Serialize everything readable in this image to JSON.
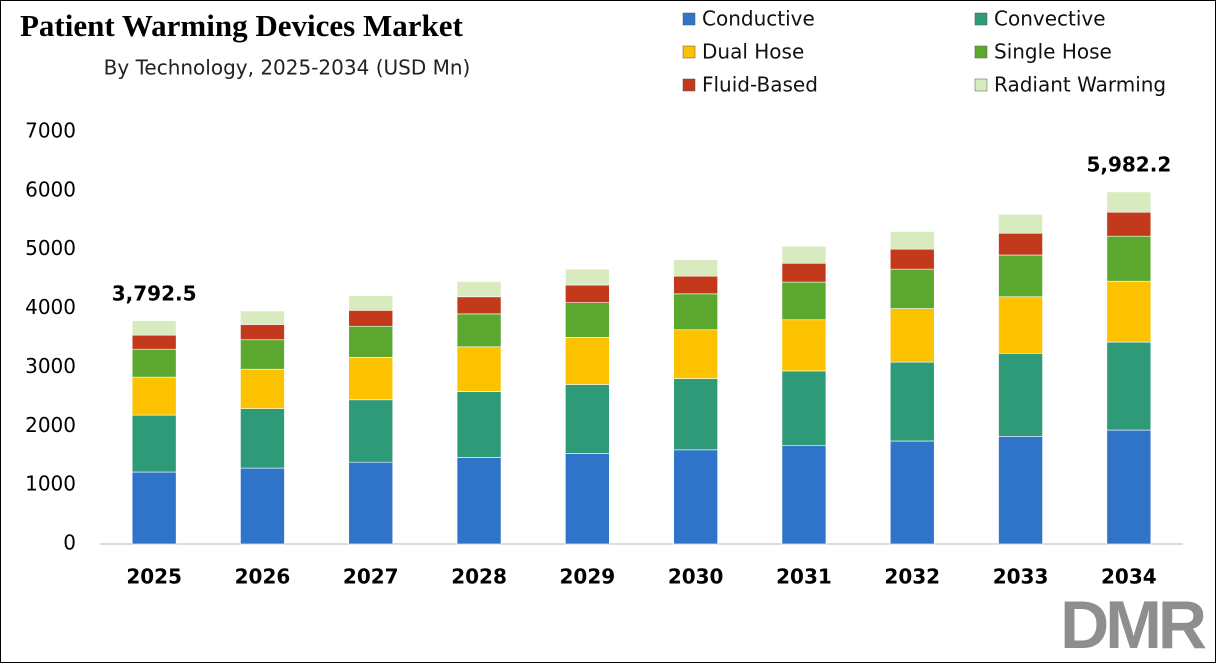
{
  "chart_data": {
    "type": "stacked_bar",
    "title": "Patient Warming Devices Market",
    "subtitle": "By Technology, 2025-2034 (USD Mn)",
    "categories": [
      "2025",
      "2026",
      "2027",
      "2028",
      "2029",
      "2030",
      "2031",
      "2032",
      "2033",
      "2034"
    ],
    "series": [
      {
        "name": "Conductive",
        "color": "#2f74c8",
        "values": [
          1223,
          1290,
          1390,
          1470,
          1540,
          1600,
          1670,
          1750,
          1830,
          1936
        ]
      },
      {
        "name": "Convective",
        "color": "#2e9a78",
        "values": [
          967,
          1010,
          1060,
          1120,
          1170,
          1210,
          1270,
          1340,
          1410,
          1494
        ]
      },
      {
        "name": "Dual Hose",
        "color": "#fcc200",
        "values": [
          645,
          670,
          720,
          760,
          800,
          830,
          870,
          910,
          960,
          1035
        ]
      },
      {
        "name": "Single Hose",
        "color": "#5ca82e",
        "values": [
          475,
          500,
          530,
          560,
          590,
          610,
          640,
          670,
          710,
          765
        ]
      },
      {
        "name": "Fluid-Based",
        "color": "#c2391b",
        "values": [
          238,
          260,
          270,
          290,
          300,
          300,
          320,
          340,
          370,
          407
        ]
      },
      {
        "name": "Radiant Warming",
        "color": "#d8ebbf",
        "values": [
          244.5,
          230,
          250,
          260,
          270,
          280,
          290,
          300,
          320,
          345.2
        ]
      }
    ],
    "totals": {
      "values": [
        3792.5,
        null,
        null,
        null,
        null,
        null,
        null,
        null,
        null,
        5982.2
      ],
      "value_labels": [
        "3,792.5",
        null,
        null,
        null,
        null,
        null,
        null,
        null,
        null,
        "5,982.2"
      ]
    },
    "ylim": [
      0,
      7000
    ],
    "yticks": [
      0,
      1000,
      2000,
      3000,
      4000,
      5000,
      6000,
      7000
    ],
    "grid": false,
    "legend": "top-right",
    "logo": "DMR"
  }
}
